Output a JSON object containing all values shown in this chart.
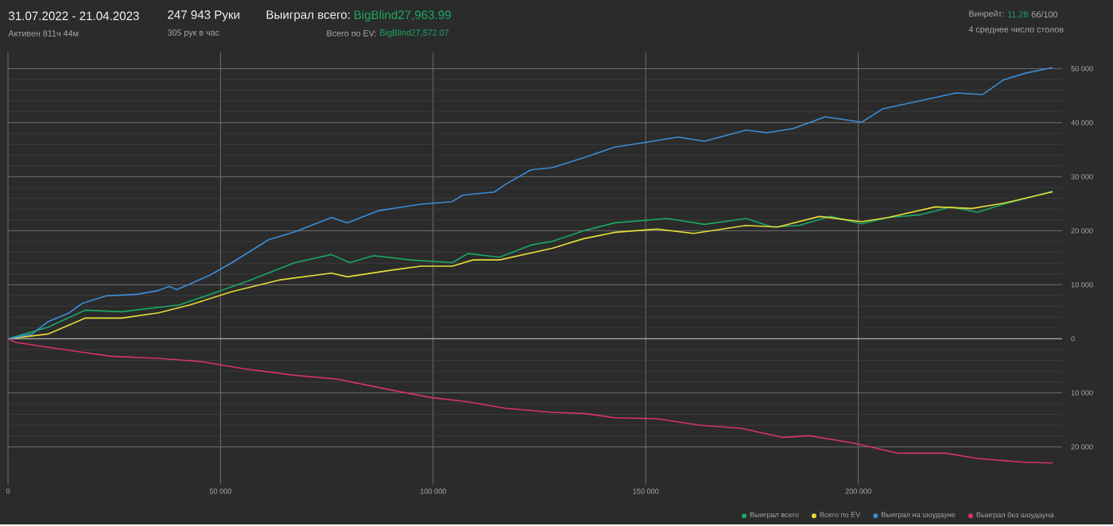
{
  "chart_data": {
    "type": "line",
    "title": "31.07.2022 - 21.04.2023",
    "subtitle": "Активен 811ч 44м",
    "annotations": [
      "247 943 Руки",
      "305 рук в час",
      "Выиграл всего:",
      "BigBlind27,963.99",
      "Всего по EV:",
      "BigBlind27,572.07",
      "Винрейт:",
      "11.28",
      "бб/100",
      "4 среднее число столов"
    ],
    "xlim": [
      0,
      247943
    ],
    "ylim": [
      -27000,
      53000
    ],
    "xticks": [
      0,
      {
        "value": 50000,
        "label": "50 000"
      },
      {
        "value": 100000,
        "label": "100 000"
      },
      {
        "value": 150000,
        "label": "150 000"
      },
      {
        "value": 200000,
        "label": "200 000"
      }
    ],
    "yticks": [
      {
        "value": -20000,
        "label": "20 000"
      },
      {
        "value": -10000,
        "label": "10 000"
      },
      0,
      {
        "value": 10000,
        "label": "10 000"
      },
      {
        "value": 20000,
        "label": "20 000"
      },
      {
        "value": 30000,
        "label": "30 000"
      },
      {
        "value": 40000,
        "label": "40 000"
      },
      {
        "value": 50000,
        "label": "50 000"
      }
    ],
    "grid": true,
    "legend": "bottom right",
    "marker": "none",
    "line_style": "solid",
    "series": [
      {
        "name": "Выиграл всего",
        "color": "#1aa864",
        "x": [
          0,
          9400,
          18100,
          26700,
          32900,
          40300,
          47700,
          56400,
          67500,
          76100,
          80400,
          86000,
          94600,
          104500,
          108200,
          115600,
          123000,
          128000,
          135400,
          142800,
          155100,
          163800,
          173600,
          179800,
          186000,
          193400,
          200800,
          207000,
          214400,
          221800,
          228000,
          234200,
          245700
        ],
        "values": [
          0,
          2150,
          5290,
          5000,
          5590,
          6270,
          8240,
          10680,
          14100,
          15590,
          14100,
          15390,
          14600,
          14100,
          15780,
          15100,
          17350,
          18030,
          20000,
          21470,
          22260,
          21180,
          22260,
          20680,
          20980,
          22650,
          21270,
          22450,
          22940,
          24410,
          23440,
          24900,
          27350
        ]
      },
      {
        "name": "Всего по EV",
        "color": "#e6dc3a",
        "x": [
          0,
          9400,
          18100,
          26700,
          35400,
          42800,
          52700,
          63800,
          76100,
          79800,
          89700,
          97100,
          104500,
          109400,
          115600,
          128000,
          135400,
          142800,
          152700,
          161300,
          173600,
          181000,
          190900,
          200800,
          207000,
          218100,
          226700,
          234200,
          245700
        ],
        "values": [
          0,
          880,
          3820,
          3820,
          4800,
          6270,
          8730,
          10880,
          12150,
          11470,
          12650,
          13440,
          13440,
          14600,
          14600,
          16760,
          18530,
          19710,
          20290,
          19500,
          20980,
          20680,
          22650,
          21670,
          22450,
          24410,
          24120,
          25100,
          27200
        ]
      },
      {
        "name": "Выиграл на шоудауне",
        "color": "#3a8ed8",
        "x": [
          0,
          5700,
          9400,
          14400,
          17500,
          23000,
          30400,
          35400,
          37900,
          39700,
          47700,
          52700,
          61300,
          67500,
          76100,
          79800,
          87200,
          97100,
          104500,
          107000,
          114400,
          116900,
          123000,
          128000,
          135400,
          142800,
          150200,
          157600,
          163800,
          173600,
          178600,
          184700,
          192200,
          200800,
          205700,
          214400,
          223000,
          229200,
          234200,
          239100,
          245700
        ],
        "values": [
          0,
          880,
          3150,
          4800,
          6570,
          7940,
          8240,
          8940,
          9700,
          9100,
          11850,
          14100,
          18330,
          19800,
          22450,
          21470,
          23720,
          24900,
          25400,
          26600,
          27150,
          28530,
          31270,
          31670,
          33530,
          35500,
          36380,
          37350,
          36560,
          38620,
          38140,
          38920,
          41080,
          40100,
          42550,
          44030,
          45500,
          45200,
          47940,
          49120,
          50200
        ]
      },
      {
        "name": "Выиграл без шоудауна",
        "color": "#d6336c",
        "x": [
          0,
          2000,
          9400,
          18100,
          24300,
          35400,
          45300,
          55100,
          67500,
          77300,
          89700,
          99600,
          108200,
          116900,
          128000,
          135400,
          142800,
          152700,
          162500,
          172400,
          182300,
          188400,
          198300,
          209400,
          220600,
          228000,
          239100,
          245700
        ],
        "values": [
          0,
          -680,
          -1560,
          -2550,
          -3240,
          -3630,
          -4210,
          -5500,
          -6760,
          -7450,
          -9410,
          -10880,
          -11670,
          -12850,
          -13620,
          -13820,
          -14610,
          -14800,
          -15970,
          -16560,
          -18240,
          -17940,
          -19210,
          -21180,
          -21180,
          -22150,
          -22850,
          -23000
        ]
      }
    ]
  }
}
